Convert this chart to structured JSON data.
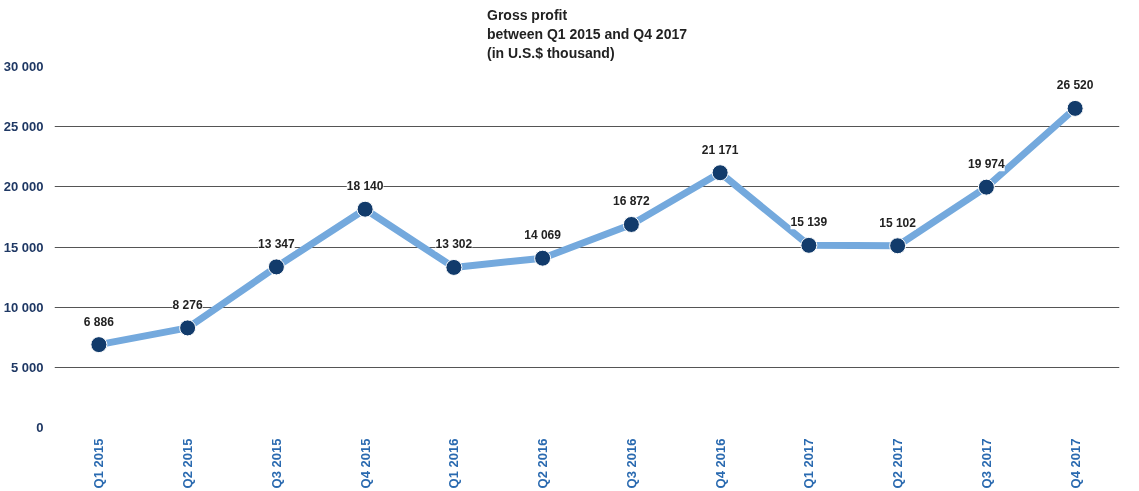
{
  "chart_data": {
    "type": "line",
    "title": "Gross profit\nbetween Q1 2015 and Q4 2017\n(in U.S.$ thousand)",
    "categories": [
      "Q1 2015",
      "Q2 2015",
      "Q3 2015",
      "Q4 2015",
      "Q1 2016",
      "Q2 2016",
      "Q3 2016",
      "Q4 2016",
      "Q1 2017",
      "Q2 2017",
      "Q3 2017",
      "Q4 2017"
    ],
    "series": [
      {
        "color": "#74a9dd",
        "colors": [
          "#123b6b",
          "#123b6b",
          "#123b6b",
          "#123b6b",
          "#123b6b",
          "#123b6b",
          "#123b6b",
          "#123b6b",
          "#123b6b",
          "#123b6b",
          "#123b6b",
          "#123b6b"
        ],
        "values": [
          6886,
          8276,
          13347,
          18140,
          13302,
          14069,
          16872,
          21171,
          15139,
          15102,
          19974,
          26520
        ],
        "value_labels": [
          "6 886",
          "8 276",
          "13 347",
          "18 140",
          "13 302",
          "14 069",
          "16 872",
          "21 171",
          "15 139",
          "15 102",
          "19 974",
          "26 520"
        ]
      }
    ],
    "ylim": [
      0,
      30000
    ],
    "yticks": [
      0,
      {
        "value": 5000,
        "label": "5 000"
      },
      {
        "value": 10000,
        "label": "10 000"
      },
      {
        "value": 15000,
        "label": "15 000"
      },
      {
        "value": 20000,
        "label": "20 000"
      },
      {
        "value": 25000,
        "label": "25 000"
      },
      {
        "value": 30000,
        "label": "30 000"
      }
    ],
    "grid": "y",
    "marker": "circle",
    "line_style": "solid"
  }
}
